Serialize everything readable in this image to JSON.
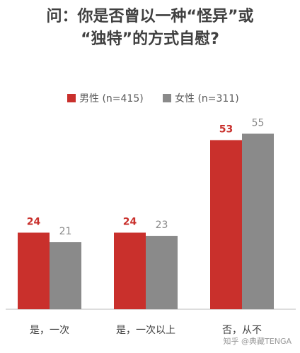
{
  "chart_data": {
    "type": "bar",
    "title": [
      "问：你是否曾以一种“怪异”或",
      "“独特”的方式自慰?"
    ],
    "categories": [
      "是，一次",
      "是，一次以上",
      "否，从不"
    ],
    "series": [
      {
        "name": "男性 (n=415)",
        "color": "#c9302c",
        "values": [
          24,
          24,
          53
        ]
      },
      {
        "name": "女性 (n=311)",
        "color": "#8a8a8a",
        "values": [
          21,
          23,
          55
        ]
      }
    ],
    "watermark": "知乎 @典藏TENGA"
  }
}
